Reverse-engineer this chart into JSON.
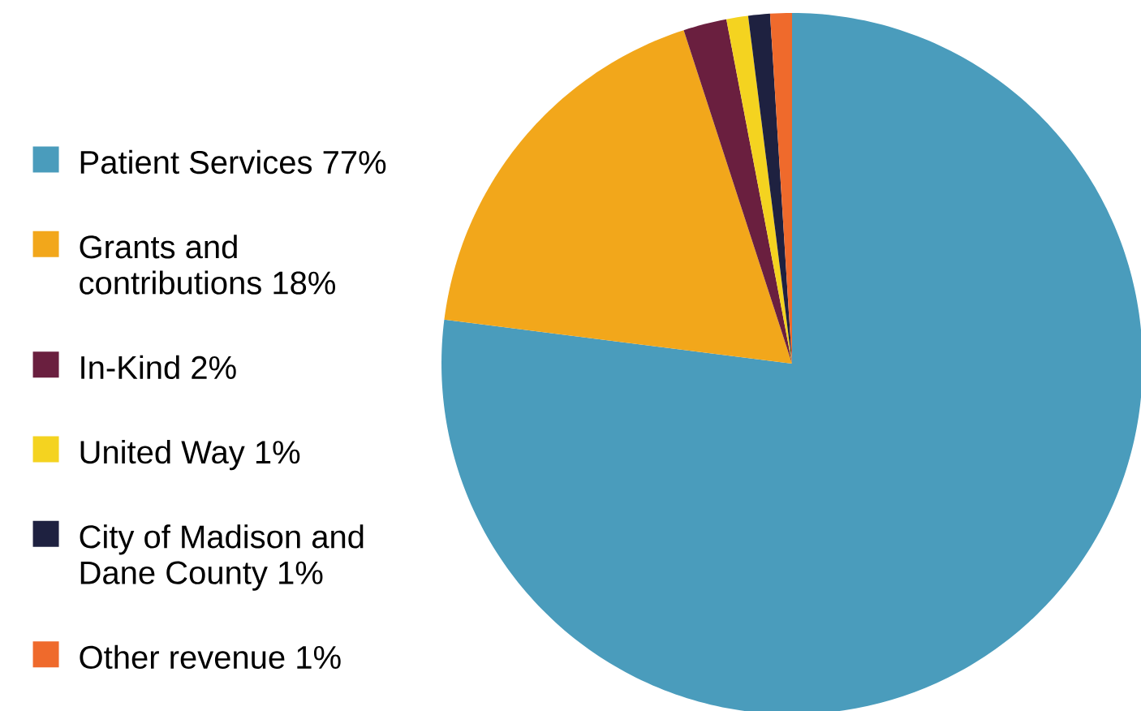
{
  "chart_data": {
    "type": "pie",
    "categories": [
      "Patient Services 77%",
      "Grants and contributions 18%",
      "In-Kind 2%",
      "United Way 1%",
      "City of Madison and Dane County 1%",
      "Other revenue 1%"
    ],
    "values": [
      77,
      18,
      2,
      1,
      1,
      1
    ],
    "colors": [
      "#4a9cbc",
      "#f2a71b",
      "#6a1f3f",
      "#f4d320",
      "#1e2140",
      "#ef6a2c"
    ],
    "legend": "left"
  }
}
